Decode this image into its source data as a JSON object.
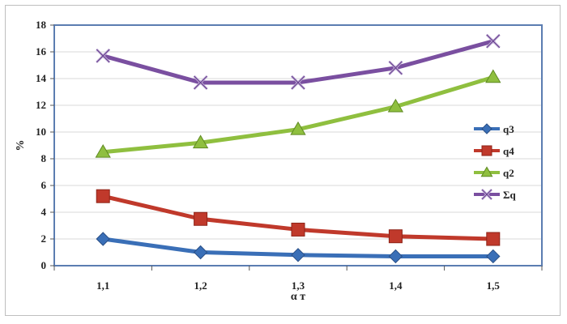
{
  "chart_data": {
    "type": "line",
    "title": "",
    "xlabel": "α т",
    "ylabel": "%",
    "categories": [
      "1,1",
      "1,2",
      "1,3",
      "1,4",
      "1,5"
    ],
    "ylim": [
      0,
      18
    ],
    "yticks": [
      "0",
      "2",
      "4",
      "6",
      "8",
      "10",
      "12",
      "14",
      "16",
      "18"
    ],
    "grid": true,
    "legend_position": "right",
    "series": [
      {
        "name": "q3",
        "color": "#3a6fb7",
        "marker": "diamond",
        "values": [
          2.0,
          1.0,
          0.8,
          0.7,
          0.7
        ]
      },
      {
        "name": "q4",
        "color": "#c0392b",
        "marker": "square",
        "values": [
          5.2,
          3.5,
          2.7,
          2.2,
          2.0
        ]
      },
      {
        "name": "q2",
        "color": "#8fbf3f",
        "marker": "triangle",
        "values": [
          8.5,
          9.2,
          10.2,
          11.9,
          14.1
        ]
      },
      {
        "name": "Σq",
        "color": "#7a4fa0",
        "marker": "cross",
        "values": [
          15.7,
          13.7,
          13.7,
          14.8,
          16.8
        ]
      }
    ]
  }
}
